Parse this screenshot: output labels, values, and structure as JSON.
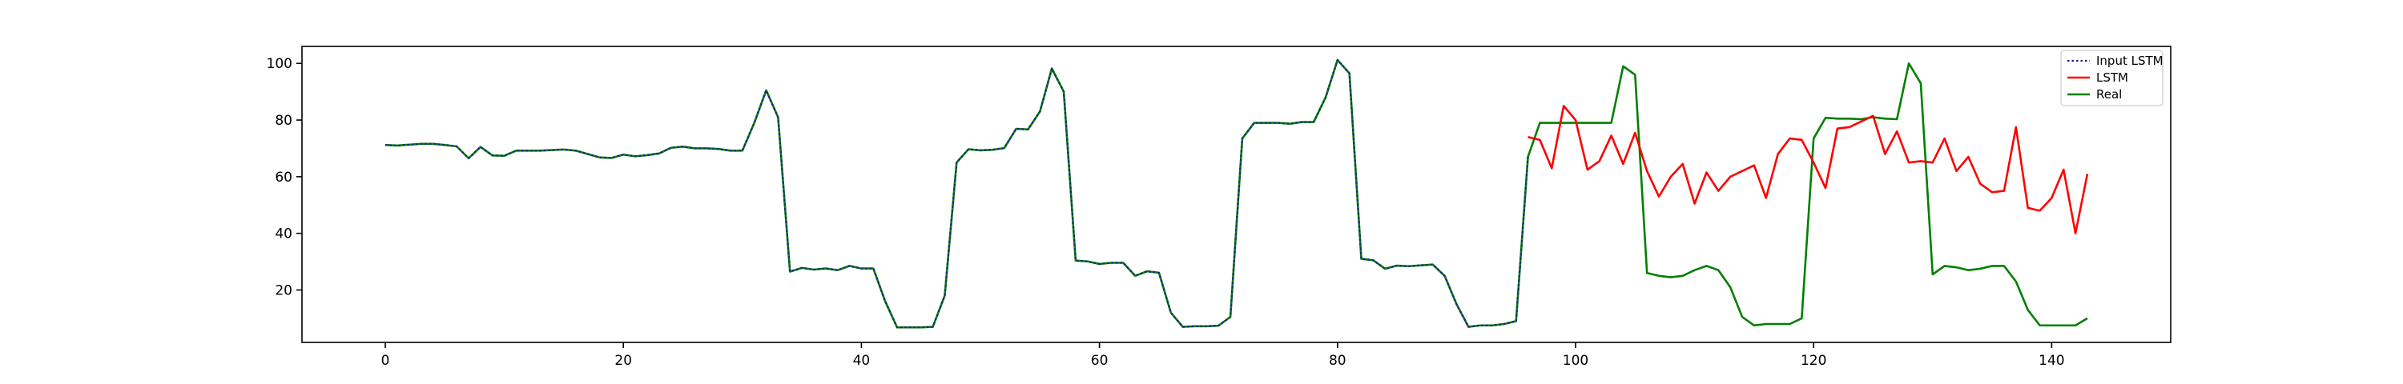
{
  "chart_data": {
    "type": "line",
    "xlim": [
      -7,
      150
    ],
    "ylim": [
      1.5,
      106
    ],
    "x_ticks": [
      0,
      20,
      40,
      60,
      80,
      100,
      120,
      140
    ],
    "y_ticks": [
      20,
      40,
      60,
      80,
      100
    ],
    "grid": false,
    "legend_position": "top-right",
    "legend": [
      {
        "label": "Input LSTM",
        "color": "#1f1f8f",
        "style": "dotted"
      },
      {
        "label": "LSTM",
        "color": "#ff0000",
        "style": "solid"
      },
      {
        "label": "Real",
        "color": "#008000",
        "style": "solid"
      }
    ],
    "series": [
      {
        "name": "Input LSTM",
        "color": "#1f1f8f",
        "style": "dotted",
        "x_start": 0,
        "values": [
          71.2,
          71.0,
          71.3,
          71.6,
          71.6,
          71.2,
          70.7,
          66.5,
          70.5,
          67.5,
          67.4,
          69.2,
          69.2,
          69.2,
          69.4,
          69.6,
          69.2,
          68.0,
          66.8,
          66.6,
          67.8,
          67.2,
          67.6,
          68.2,
          70.2,
          70.6,
          70.0,
          70.0,
          69.8,
          69.2,
          69.2,
          79.0,
          90.5,
          81.0,
          26.5,
          27.8,
          27.2,
          27.6,
          27.0,
          28.5,
          27.6,
          27.6,
          16.0,
          6.8,
          6.8,
          6.8,
          7.0,
          18.0,
          65.0,
          69.7,
          69.3,
          69.5,
          70.1,
          76.9,
          76.7,
          83.0,
          98.2,
          90.0,
          30.4,
          30.1,
          29.2,
          29.6,
          29.6,
          25.0,
          26.6,
          26.1,
          12.0,
          7.0,
          7.2,
          7.2,
          7.4,
          10.5,
          73.5,
          79.0,
          79.0,
          79.0,
          78.7,
          79.3,
          79.3,
          88.0,
          101.2,
          96.5,
          31.0,
          30.5,
          27.5,
          28.6,
          28.4,
          28.7,
          29.0,
          25.0,
          15.0,
          7.0,
          7.5,
          7.5,
          8.0,
          9.0,
          67.0
        ]
      },
      {
        "name": "LSTM",
        "color": "#ff0000",
        "style": "solid",
        "x_start": 96,
        "values": [
          74.0,
          73.0,
          63.0,
          85.0,
          80.0,
          62.5,
          65.5,
          74.5,
          64.5,
          75.5,
          62.0,
          53.0,
          60.0,
          64.5,
          50.5,
          61.5,
          55.0,
          60.0,
          62.0,
          64.0,
          52.5,
          68.0,
          73.5,
          73.0,
          65.0,
          56.0,
          77.0,
          77.5,
          79.5,
          81.5,
          68.0,
          76.0,
          65.0,
          65.5,
          65.0,
          73.5,
          62.0,
          67.0,
          57.5,
          54.5,
          55.0,
          77.5,
          49.0,
          48.0,
          52.5,
          62.5,
          40.0,
          61.0
        ]
      },
      {
        "name": "Real",
        "color": "#008000",
        "style": "solid",
        "x_start": 0,
        "values": [
          71.2,
          71.0,
          71.3,
          71.6,
          71.6,
          71.2,
          70.7,
          66.5,
          70.5,
          67.5,
          67.4,
          69.2,
          69.2,
          69.2,
          69.4,
          69.6,
          69.2,
          68.0,
          66.8,
          66.6,
          67.8,
          67.2,
          67.6,
          68.2,
          70.2,
          70.6,
          70.0,
          70.0,
          69.8,
          69.2,
          69.2,
          79.0,
          90.5,
          81.0,
          26.5,
          27.8,
          27.2,
          27.6,
          27.0,
          28.5,
          27.6,
          27.6,
          16.0,
          6.8,
          6.8,
          6.8,
          7.0,
          18.0,
          65.0,
          69.7,
          69.3,
          69.5,
          70.1,
          76.9,
          76.7,
          83.0,
          98.2,
          90.0,
          30.4,
          30.1,
          29.2,
          29.6,
          29.6,
          25.0,
          26.6,
          26.1,
          12.0,
          7.0,
          7.2,
          7.2,
          7.4,
          10.5,
          73.5,
          79.0,
          79.0,
          79.0,
          78.7,
          79.3,
          79.3,
          88.0,
          101.2,
          96.5,
          31.0,
          30.5,
          27.5,
          28.6,
          28.4,
          28.7,
          29.0,
          25.0,
          15.0,
          7.0,
          7.5,
          7.5,
          8.0,
          9.0,
          67.0,
          79.0,
          79.0,
          79.0,
          79.0,
          79.0,
          79.0,
          79.0,
          99.0,
          96.0,
          26.0,
          25.0,
          24.5,
          25.0,
          27.0,
          28.5,
          27.0,
          21.0,
          10.5,
          7.5,
          8.0,
          8.0,
          8.0,
          10.0,
          73.5,
          80.8,
          80.5,
          80.5,
          80.3,
          81.0,
          80.5,
          80.3,
          100.0,
          93.0,
          25.5,
          28.5,
          28.0,
          27.0,
          27.5,
          28.5,
          28.5,
          23.0,
          13.0,
          7.5,
          7.5,
          7.5,
          7.5,
          10.0
        ]
      }
    ]
  }
}
